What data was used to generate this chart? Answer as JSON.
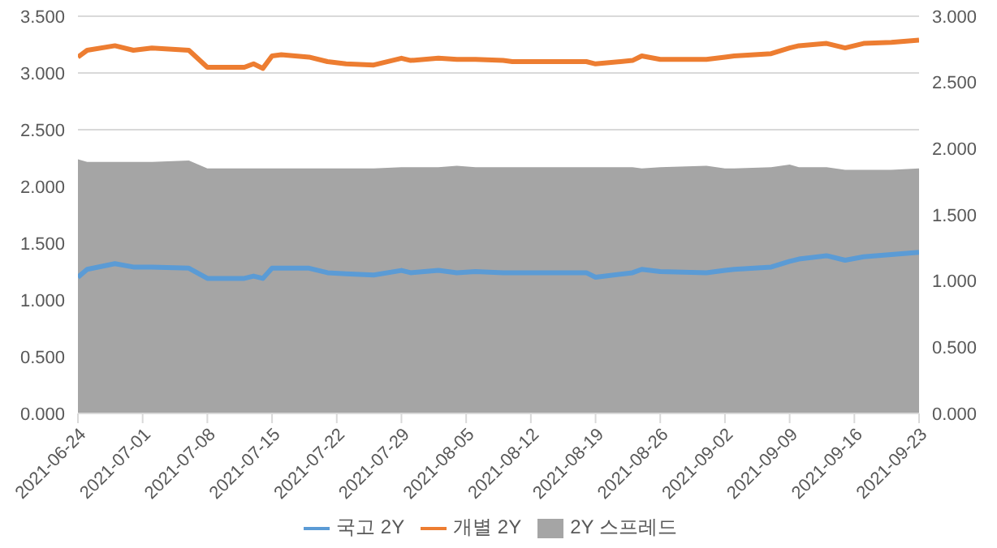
{
  "chart_data": {
    "type": "line",
    "x": [
      "2021-06-24",
      "2021-06-25",
      "2021-06-28",
      "2021-06-30",
      "2021-07-02",
      "2021-07-06",
      "2021-07-08",
      "2021-07-12",
      "2021-07-13",
      "2021-07-14",
      "2021-07-15",
      "2021-07-16",
      "2021-07-19",
      "2021-07-21",
      "2021-07-23",
      "2021-07-26",
      "2021-07-29",
      "2021-07-30",
      "2021-08-02",
      "2021-08-04",
      "2021-08-06",
      "2021-08-09",
      "2021-08-10",
      "2021-08-18",
      "2021-08-19",
      "2021-08-23",
      "2021-08-24",
      "2021-08-26",
      "2021-08-31",
      "2021-09-02",
      "2021-09-03",
      "2021-09-07",
      "2021-09-09",
      "2021-09-10",
      "2021-09-13",
      "2021-09-15",
      "2021-09-17",
      "2021-09-20",
      "2021-09-23"
    ],
    "series": [
      {
        "name": "국고 2Y",
        "color": "#5b9bd5",
        "values": [
          1.2,
          1.27,
          1.32,
          1.29,
          1.29,
          1.28,
          1.19,
          1.19,
          1.21,
          1.19,
          1.28,
          1.28,
          1.28,
          1.24,
          1.23,
          1.22,
          1.26,
          1.24,
          1.26,
          1.24,
          1.25,
          1.24,
          1.24,
          1.24,
          1.2,
          1.24,
          1.27,
          1.25,
          1.24,
          1.26,
          1.27,
          1.29,
          1.34,
          1.36,
          1.39,
          1.35,
          1.38,
          1.4,
          1.42
        ]
      },
      {
        "name": "개별 2Y",
        "color": "#ed7d31",
        "values": [
          3.14,
          3.2,
          3.24,
          3.2,
          3.22,
          3.2,
          3.05,
          3.05,
          3.08,
          3.04,
          3.15,
          3.16,
          3.14,
          3.1,
          3.08,
          3.07,
          3.13,
          3.11,
          3.13,
          3.12,
          3.12,
          3.11,
          3.1,
          3.1,
          3.08,
          3.11,
          3.15,
          3.12,
          3.12,
          3.14,
          3.15,
          3.17,
          3.22,
          3.24,
          3.26,
          3.22,
          3.26,
          3.27,
          3.29
        ]
      },
      {
        "name": "2Y 스프레드",
        "type": "area",
        "axis": "y2",
        "color": "#a5a5a5",
        "values": [
          1.92,
          1.9,
          1.9,
          1.9,
          1.9,
          1.91,
          1.85,
          1.85,
          1.85,
          1.85,
          1.85,
          1.85,
          1.85,
          1.85,
          1.85,
          1.85,
          1.86,
          1.86,
          1.86,
          1.87,
          1.86,
          1.86,
          1.86,
          1.86,
          1.86,
          1.86,
          1.85,
          1.86,
          1.87,
          1.85,
          1.85,
          1.86,
          1.88,
          1.86,
          1.86,
          1.84,
          1.84,
          1.84,
          1.85
        ]
      }
    ],
    "xlim": [
      "2021-06-24",
      "2021-09-23"
    ],
    "xticks": [
      "2021-06-24",
      "2021-07-01",
      "2021-07-08",
      "2021-07-15",
      "2021-07-22",
      "2021-07-29",
      "2021-08-05",
      "2021-08-12",
      "2021-08-19",
      "2021-08-26",
      "2021-09-02",
      "2021-09-09",
      "2021-09-16",
      "2021-09-23"
    ],
    "ylim": [
      0,
      3.5
    ],
    "yticks": [
      {
        "value": 0,
        "label": "0.000"
      },
      {
        "value": 0.5,
        "label": "0.500"
      },
      {
        "value": 1,
        "label": "1.000"
      },
      {
        "value": 1.5,
        "label": "1.500"
      },
      {
        "value": 2,
        "label": "2.000"
      },
      {
        "value": 2.5,
        "label": "2.500"
      },
      {
        "value": 3,
        "label": "3.000"
      },
      {
        "value": 3.5,
        "label": "3.500"
      }
    ],
    "y2lim": [
      0,
      3
    ],
    "y2ticks": [
      {
        "value": 0,
        "label": "0.000"
      },
      {
        "value": 0.5,
        "label": "0.500"
      },
      {
        "value": 1,
        "label": "1.000"
      },
      {
        "value": 1.5,
        "label": "1.500"
      },
      {
        "value": 2,
        "label": "2.000"
      },
      {
        "value": 2.5,
        "label": "2.500"
      },
      {
        "value": 3,
        "label": "3.000"
      }
    ],
    "grid": "y",
    "legend": "bottom"
  }
}
